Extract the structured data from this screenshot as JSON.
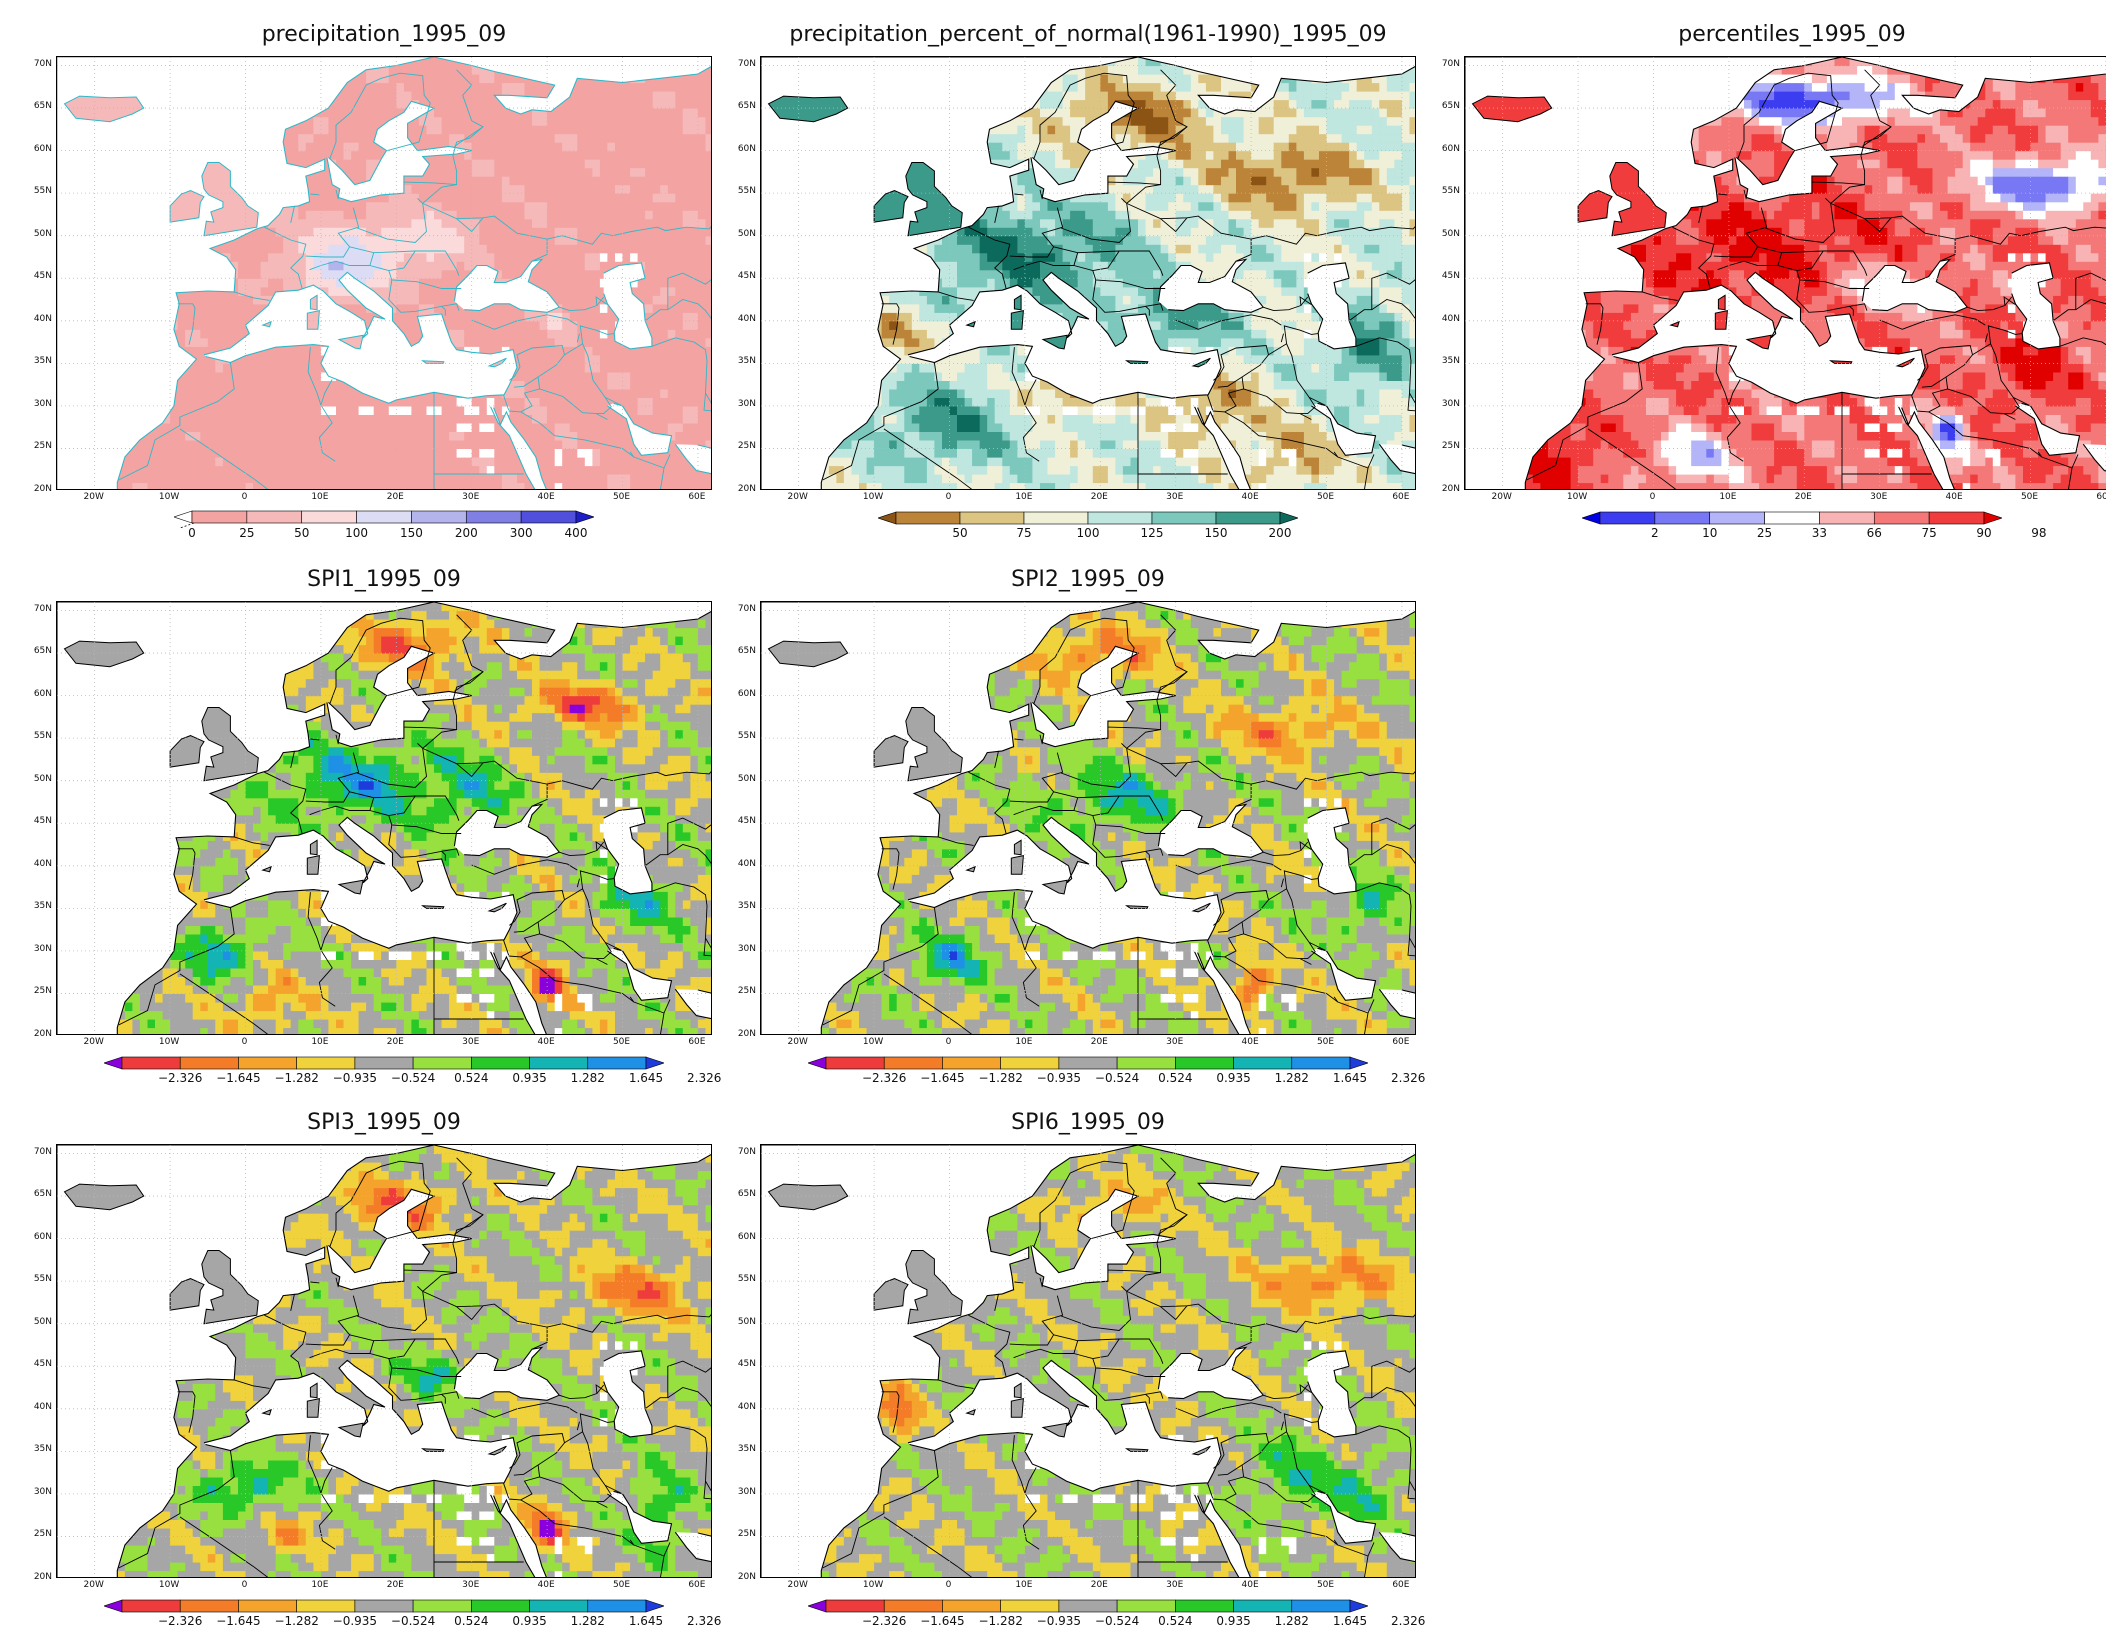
{
  "figure": {
    "colors": {
      "land_gray": "#a6a6a6",
      "missing_white": "#ffffff",
      "coast_black": "#000000",
      "coast_cyan": "#30b8c8",
      "gridline": "#b8b8b8"
    }
  },
  "axes": {
    "lat_labels": [
      "70N",
      "65N",
      "60N",
      "55N",
      "50N",
      "45N",
      "40N",
      "35N",
      "30N",
      "25N",
      "20N"
    ],
    "lon_labels": [
      "20W",
      "10W",
      "0",
      "10E",
      "20E",
      "30E",
      "40E",
      "50E",
      "60E"
    ]
  },
  "panels": [
    {
      "id": "precip",
      "title": "precipitation_1995_09",
      "field": "precipitation",
      "coast_color": "#30b8c8",
      "legend": {
        "labels": [
          "0",
          "25",
          "50",
          "100",
          "150",
          "200",
          "300",
          "400"
        ],
        "colors": [
          "#ffffff",
          "#f4a3a3",
          "#f6b9b9",
          "#fadada",
          "#dcdcf4",
          "#b4b4ec",
          "#8080e4",
          "#5050dc",
          "#1e1ec8"
        ],
        "first_label_dashed": true
      }
    },
    {
      "id": "pnormal",
      "title": "precipitation_percent_of_normal(1961-1990)_1995_09",
      "field": "percent_of_normal",
      "coast_color": "#000000",
      "legend": {
        "labels": [
          "50",
          "75",
          "100",
          "125",
          "150",
          "200"
        ],
        "colors": [
          "#8c5414",
          "#bc8438",
          "#dcc482",
          "#f0f0d8",
          "#bfe6df",
          "#7cc8bc",
          "#3c9a8a",
          "#0c6a5c"
        ]
      }
    },
    {
      "id": "pct",
      "title": "percentiles_1995_09",
      "field": "percentiles",
      "coast_color": "#000000",
      "legend": {
        "labels": [
          "2",
          "10",
          "25",
          "33",
          "66",
          "75",
          "90",
          "98"
        ],
        "colors": [
          "#0000e0",
          "#3c3cf0",
          "#7878f4",
          "#b4b4f8",
          "#ffffff",
          "#f8b4b4",
          "#f47878",
          "#f03c3c",
          "#e00000"
        ]
      }
    },
    {
      "id": "spi1",
      "title": "SPI1_1995_09",
      "field": "spi1",
      "coast_color": "#000000",
      "legend": {
        "labels": [
          "−2.326",
          "−1.645",
          "−1.282",
          "−0.935",
          "−0.524",
          "0.524",
          "0.935",
          "1.282",
          "1.645",
          "2.326"
        ],
        "colors": [
          "#8a00dc",
          "#ee3c3c",
          "#f47c28",
          "#f4a42c",
          "#f0d23c",
          "#a6a6a6",
          "#98e040",
          "#28c828",
          "#14b4b4",
          "#1e90e6",
          "#1e3cdc"
        ]
      }
    },
    {
      "id": "spi2",
      "title": "SPI2_1995_09",
      "field": "spi2",
      "coast_color": "#000000",
      "legend": {
        "labels": [
          "−2.326",
          "−1.645",
          "−1.282",
          "−0.935",
          "−0.524",
          "0.524",
          "0.935",
          "1.282",
          "1.645",
          "2.326"
        ],
        "colors": [
          "#8a00dc",
          "#ee3c3c",
          "#f47c28",
          "#f4a42c",
          "#f0d23c",
          "#a6a6a6",
          "#98e040",
          "#28c828",
          "#14b4b4",
          "#1e90e6",
          "#1e3cdc"
        ]
      }
    },
    {
      "id": "spi3",
      "title": "SPI3_1995_09",
      "field": "spi3",
      "coast_color": "#000000",
      "legend": {
        "labels": [
          "−2.326",
          "−1.645",
          "−1.282",
          "−0.935",
          "−0.524",
          "0.524",
          "0.935",
          "1.282",
          "1.645",
          "2.326"
        ],
        "colors": [
          "#8a00dc",
          "#ee3c3c",
          "#f47c28",
          "#f4a42c",
          "#f0d23c",
          "#a6a6a6",
          "#98e040",
          "#28c828",
          "#14b4b4",
          "#1e90e6",
          "#1e3cdc"
        ]
      }
    },
    {
      "id": "spi6",
      "title": "SPI6_1995_09",
      "field": "spi6",
      "coast_color": "#000000",
      "legend": {
        "labels": [
          "−2.326",
          "−1.645",
          "−1.282",
          "−0.935",
          "−0.524",
          "0.524",
          "0.935",
          "1.282",
          "1.645",
          "2.326"
        ],
        "colors": [
          "#8a00dc",
          "#ee3c3c",
          "#f47c28",
          "#f4a42c",
          "#f0d23c",
          "#a6a6a6",
          "#98e040",
          "#28c828",
          "#14b4b4",
          "#1e90e6",
          "#1e3cdc"
        ]
      }
    }
  ]
}
